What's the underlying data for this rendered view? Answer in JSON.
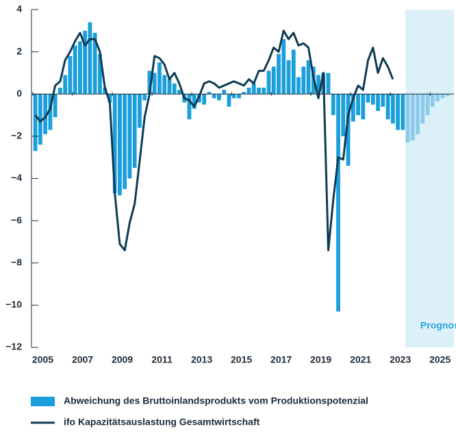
{
  "chart_data": {
    "type": "bar-line",
    "x": [
      2005.125,
      2005.375,
      2005.625,
      2005.875,
      2006.125,
      2006.375,
      2006.625,
      2006.875,
      2007.125,
      2007.375,
      2007.625,
      2007.875,
      2008.125,
      2008.375,
      2008.625,
      2008.875,
      2009.125,
      2009.375,
      2009.625,
      2009.875,
      2010.125,
      2010.375,
      2010.625,
      2010.875,
      2011.125,
      2011.375,
      2011.625,
      2011.875,
      2012.125,
      2012.375,
      2012.625,
      2012.875,
      2013.125,
      2013.375,
      2013.625,
      2013.875,
      2014.125,
      2014.375,
      2014.625,
      2014.875,
      2015.125,
      2015.375,
      2015.625,
      2015.875,
      2016.125,
      2016.375,
      2016.625,
      2016.875,
      2017.125,
      2017.375,
      2017.625,
      2017.875,
      2018.125,
      2018.375,
      2018.625,
      2018.875,
      2019.125,
      2019.375,
      2019.625,
      2019.875,
      2020.125,
      2020.375,
      2020.625,
      2020.875,
      2021.125,
      2021.375,
      2021.625,
      2021.875,
      2022.125,
      2022.375,
      2022.625,
      2022.875,
      2023.125,
      2023.375,
      2023.625,
      2023.875,
      2024.125,
      2024.375,
      2024.625,
      2024.875,
      2025.125,
      2025.375,
      2025.625,
      2025.875
    ],
    "series": [
      {
        "name": "Abweichung des Bruttoinlandsprodukts vom Produktionspotenzial",
        "kind": "bar",
        "color": "#1b9fdc",
        "forecast_color": "#8ccbea",
        "values": [
          -2.7,
          -2.4,
          -1.9,
          -1.7,
          -1.1,
          0.3,
          0.9,
          1.8,
          2.3,
          2.5,
          3.0,
          3.4,
          2.9,
          1.9,
          0.3,
          -0.4,
          -4.7,
          -4.8,
          -4.5,
          -4.0,
          -3.5,
          -1.6,
          -0.3,
          1.1,
          1.0,
          1.5,
          0.9,
          0.7,
          0.5,
          0.2,
          -0.4,
          -1.2,
          -0.7,
          -0.4,
          -0.5,
          0.1,
          -0.2,
          -0.3,
          0.2,
          -0.6,
          -0.2,
          -0.2,
          0.1,
          0.3,
          0.5,
          0.3,
          0.3,
          1.1,
          1.3,
          1.9,
          2.6,
          1.6,
          2.1,
          0.8,
          1.3,
          1.6,
          1.3,
          0.9,
          1.0,
          1.0,
          -1.0,
          -10.3,
          -2.0,
          -3.4,
          -1.3,
          -1.0,
          -1.2,
          -0.4,
          -0.5,
          -0.8,
          -0.6,
          -1.2,
          -1.4,
          -1.7,
          -1.7,
          -2.3,
          -2.2,
          -1.9,
          -1.4,
          -1.0,
          -0.6,
          -0.35,
          -0.2,
          -0.1
        ]
      },
      {
        "name": "ifo Kapazitätsauslastung Gesamtwirtschaft",
        "kind": "line",
        "color": "#0d3a52",
        "values": [
          -1.0,
          -1.3,
          -1.1,
          -0.7,
          0.4,
          0.6,
          1.6,
          2.0,
          2.5,
          2.9,
          2.3,
          2.6,
          2.6,
          2.0,
          0.3,
          -0.4,
          -4.7,
          -7.1,
          -7.4,
          -6.1,
          -5.2,
          -3.2,
          -1.1,
          0.0,
          1.8,
          1.7,
          1.4,
          0.7,
          1.0,
          0.5,
          -0.2,
          -0.3,
          -0.6,
          -0.1,
          0.5,
          0.6,
          0.5,
          0.3,
          0.4,
          0.5,
          0.6,
          0.5,
          0.4,
          0.7,
          0.5,
          1.1,
          1.1,
          1.6,
          2.2,
          2.0,
          3.0,
          2.6,
          2.9,
          2.3,
          2.4,
          2.2,
          0.8,
          -0.2,
          1.0,
          -7.4,
          -5.0,
          -3.0,
          -3.1,
          -1.0,
          -0.2,
          0.4,
          0.2,
          1.6,
          2.2,
          1.0,
          1.7,
          1.3,
          0.7,
          null,
          null,
          null,
          null,
          null,
          null,
          null,
          null,
          null,
          null,
          null
        ]
      }
    ],
    "forecast": {
      "label": "Prognose",
      "start": 2023.75,
      "color": "#dcf0fa",
      "text_color": "#2aa5de"
    },
    "xlim": [
      2005,
      2026.2
    ],
    "xticks": [
      {
        "value": 2005.5,
        "label": "2005"
      },
      {
        "value": 2007.5,
        "label": "2007"
      },
      {
        "value": 2009.5,
        "label": "2009"
      },
      {
        "value": 2011.5,
        "label": "2011"
      },
      {
        "value": 2013.5,
        "label": "2013"
      },
      {
        "value": 2015.5,
        "label": "2015"
      },
      {
        "value": 2017.5,
        "label": "2017"
      },
      {
        "value": 2019.5,
        "label": "2019"
      },
      {
        "value": 2021.5,
        "label": "2021"
      },
      {
        "value": 2023.5,
        "label": "2023"
      },
      {
        "value": 2025.5,
        "label": "2025"
      }
    ],
    "ylim": [
      -12,
      4
    ],
    "yticks": [
      {
        "value": -12,
        "label": "−12"
      },
      {
        "value": -10,
        "label": "−10"
      },
      {
        "value": -8,
        "label": "−8"
      },
      {
        "value": -6,
        "label": "−6"
      },
      {
        "value": -4,
        "label": "−4"
      },
      {
        "value": -2,
        "label": "−2"
      },
      0,
      2,
      4
    ]
  }
}
